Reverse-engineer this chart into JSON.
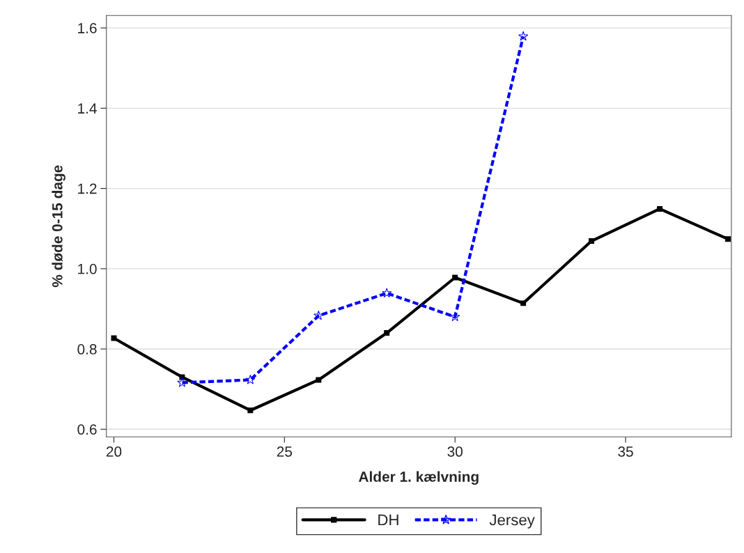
{
  "chart_data": {
    "type": "line",
    "xlabel": "Alder 1. kælvning",
    "ylabel": "% døde 0-15 dage",
    "xlim": [
      19.78,
      38.1
    ],
    "xticks": [
      20,
      25,
      30,
      35
    ],
    "ylim": [
      0.581,
      1.631
    ],
    "yticks": [
      {
        "value": 0.6,
        "label": "0.6"
      },
      {
        "value": 0.8,
        "label": "0.8"
      },
      {
        "value": 1.0,
        "label": "1.0"
      },
      {
        "value": 1.2,
        "label": "1.2"
      },
      {
        "value": 1.4,
        "label": "1.4"
      },
      {
        "value": 1.6,
        "label": "1.6"
      }
    ],
    "grid": "y",
    "legend": "bottom",
    "series": [
      {
        "name": "DH",
        "color": "#000000",
        "marker": "square",
        "line_style": "solid",
        "x": [
          20,
          22,
          24,
          26,
          28,
          30,
          32,
          34,
          36,
          38
        ],
        "values": [
          0.827,
          0.73,
          0.647,
          0.723,
          0.84,
          0.978,
          0.914,
          1.069,
          1.149,
          1.074
        ]
      },
      {
        "name": "Jersey",
        "color": "#0000ff",
        "marker": "star",
        "line_style": "dashed",
        "x": [
          22,
          24,
          26,
          28,
          30,
          32
        ],
        "values": [
          0.716,
          0.723,
          0.883,
          0.939,
          0.88,
          1.579
        ]
      }
    ]
  }
}
